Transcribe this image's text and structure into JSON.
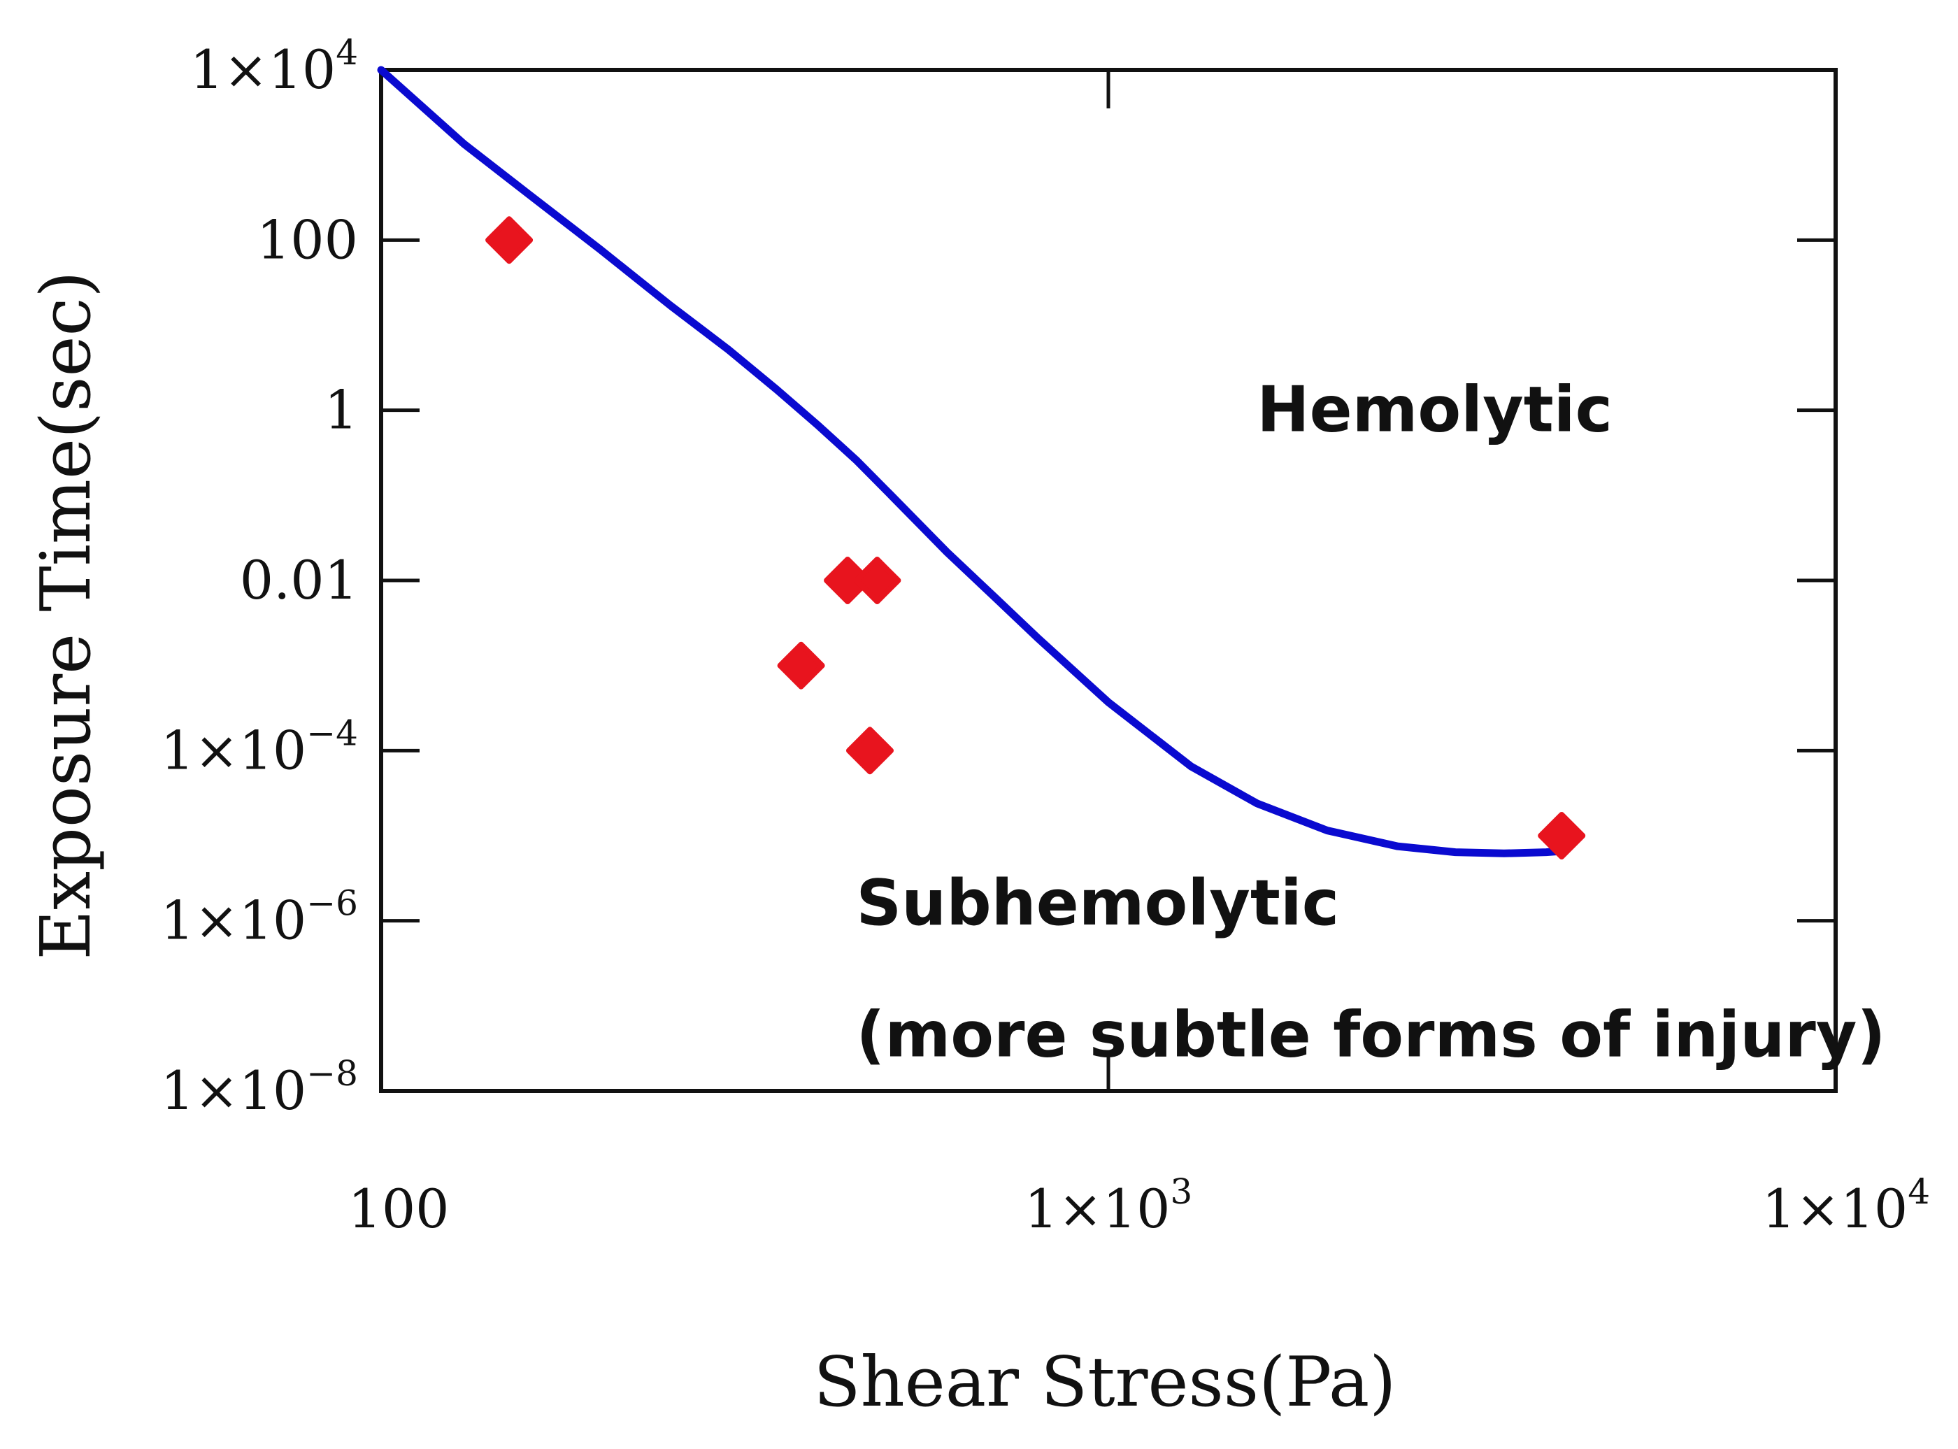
{
  "chart_data": {
    "type": "scatter",
    "title": "",
    "xlabel": "Shear Stress(Pa)",
    "ylabel": "Exposure Time(sec)",
    "x_scale": "log",
    "y_scale": "log",
    "xlim": [
      100,
      10000
    ],
    "ylim": [
      1e-08,
      10000
    ],
    "grid": false,
    "x_ticks": [
      {
        "value": 100,
        "text": "100",
        "exp": ""
      },
      {
        "value": 1000,
        "text": "1×10",
        "exp": "3"
      },
      {
        "value": 10000,
        "text": "1×10",
        "exp": "4"
      }
    ],
    "y_ticks": [
      {
        "value": 10000,
        "text": "1×10",
        "exp": "4"
      },
      {
        "value": 100,
        "text": "100",
        "exp": ""
      },
      {
        "value": 1,
        "text": "1",
        "exp": ""
      },
      {
        "value": 0.01,
        "text": "0.01",
        "exp": ""
      },
      {
        "value": 0.0001,
        "text": "1×10",
        "exp": "−4"
      },
      {
        "value": 1e-06,
        "text": "1×10",
        "exp": "−6"
      },
      {
        "value": 1e-08,
        "text": "1×10",
        "exp": "−8"
      }
    ],
    "series": [
      {
        "type": "line",
        "color": "#0a0ad0",
        "x": [
          100,
          130,
          160,
          200,
          250,
          300,
          350,
          400,
          450,
          500,
          600,
          700,
          800,
          1000,
          1300,
          1600,
          2000,
          2500,
          3000,
          3500,
          4000,
          4200
        ],
        "y": [
          10000,
          1350,
          340,
          78,
          17,
          5.2,
          1.75,
          0.65,
          0.26,
          0.105,
          0.0215,
          0.0062,
          0.0021,
          0.00037,
          6.5e-05,
          2.4e-05,
          1.15e-05,
          7.5e-06,
          6.4e-06,
          6.2e-06,
          6.4e-06,
          6.6e-06
        ]
      },
      {
        "type": "scatter",
        "color": "#e8141e",
        "x": [
          150,
          438,
          481,
          378,
          470,
          4200
        ],
        "y": [
          100,
          0.01,
          0.01,
          0.001,
          0.0001,
          1e-05
        ]
      }
    ],
    "annotations": [
      {
        "text": "Hemolytic",
        "x": 1600,
        "y": 1
      },
      {
        "text": "Subhemolytic",
        "x": 450,
        "y": 1.6e-06
      },
      {
        "text": "(more subtle forms of injury)",
        "x": 450,
        "y": 4.5e-08
      }
    ]
  }
}
